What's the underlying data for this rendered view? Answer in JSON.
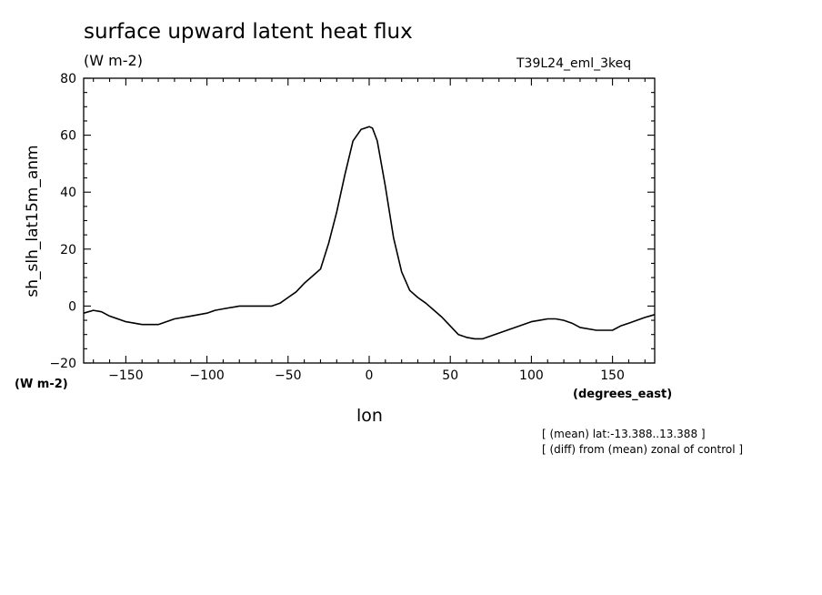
{
  "header": {
    "title": "surface upward latent heat flux",
    "units": "(W m-2)",
    "run_name": "T39L24_eml_3keq"
  },
  "notes": {
    "line1": "[ (mean) lat:-13.388..13.388 ]",
    "line2": "[ (diff) from (mean) zonal of control ]"
  },
  "chart_data": {
    "type": "line",
    "title": "surface upward latent heat flux",
    "xlabel": "lon",
    "ylabel": "sh_slh_lat15m_anm",
    "x_units": "(degrees_east)",
    "y_units": "(W m-2)",
    "xlim": [
      -176,
      176
    ],
    "ylim": [
      -20,
      80
    ],
    "x_ticks": [
      -150,
      -100,
      -50,
      0,
      50,
      100,
      150
    ],
    "y_ticks": [
      -20,
      0,
      20,
      40,
      60,
      80
    ],
    "grid": false,
    "series": [
      {
        "x": [
          -176,
          -170,
          -165,
          -160,
          -150,
          -140,
          -130,
          -125,
          -120,
          -110,
          -100,
          -95,
          -90,
          -80,
          -70,
          -65,
          -60,
          -55,
          -50,
          -45,
          -40,
          -35,
          -30,
          -25,
          -20,
          -15,
          -10,
          -5,
          0,
          2,
          5,
          10,
          15,
          20,
          25,
          30,
          35,
          40,
          45,
          50,
          55,
          60,
          65,
          70,
          75,
          80,
          85,
          90,
          100,
          105,
          110,
          115,
          120,
          125,
          130,
          140,
          150,
          155,
          160,
          170,
          176
        ],
        "y": [
          -2.5,
          -1.5,
          -2,
          -3.5,
          -5.5,
          -6.5,
          -6.5,
          -5.5,
          -4.5,
          -3.5,
          -2.5,
          -1.5,
          -1,
          0,
          0,
          0,
          0,
          1,
          3,
          5,
          8,
          10.5,
          13,
          22,
          33,
          46,
          58,
          62,
          63,
          62.5,
          58,
          42,
          24,
          12,
          5.5,
          3,
          1,
          -1.5,
          -4,
          -7,
          -10,
          -11,
          -11.5,
          -11.5,
          -10.5,
          -9.5,
          -8.5,
          -7.5,
          -5.5,
          -5,
          -4.5,
          -4.5,
          -5,
          -6,
          -7.5,
          -8.5,
          -8.5,
          -7,
          -6,
          -4,
          -3
        ]
      }
    ]
  }
}
